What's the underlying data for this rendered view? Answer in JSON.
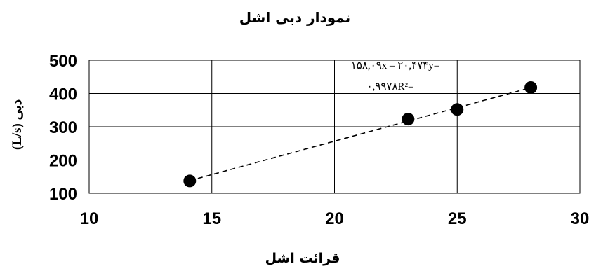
{
  "chart_data": {
    "type": "scatter",
    "title": "نمودار دبی اشل",
    "xlabel": "قرائت اشل",
    "ylabel": "دبی (L/s)",
    "xlim": [
      10,
      30
    ],
    "ylim": [
      100,
      500
    ],
    "xticks": [
      "10",
      "15",
      "20",
      "25",
      "30"
    ],
    "yticks": [
      "100",
      "200",
      "300",
      "400",
      "500"
    ],
    "grid": true,
    "points": [
      {
        "x": 14.1,
        "y": 137
      },
      {
        "x": 23.0,
        "y": 323
      },
      {
        "x": 25.0,
        "y": 352
      },
      {
        "x": 28.0,
        "y": 418
      }
    ],
    "trendline": {
      "style": "dashed",
      "equation": "۱۵۸,۰۹x – ۲۰,۴۷۴y=",
      "r_squared": "۰,۹۹۷۸R²="
    }
  }
}
